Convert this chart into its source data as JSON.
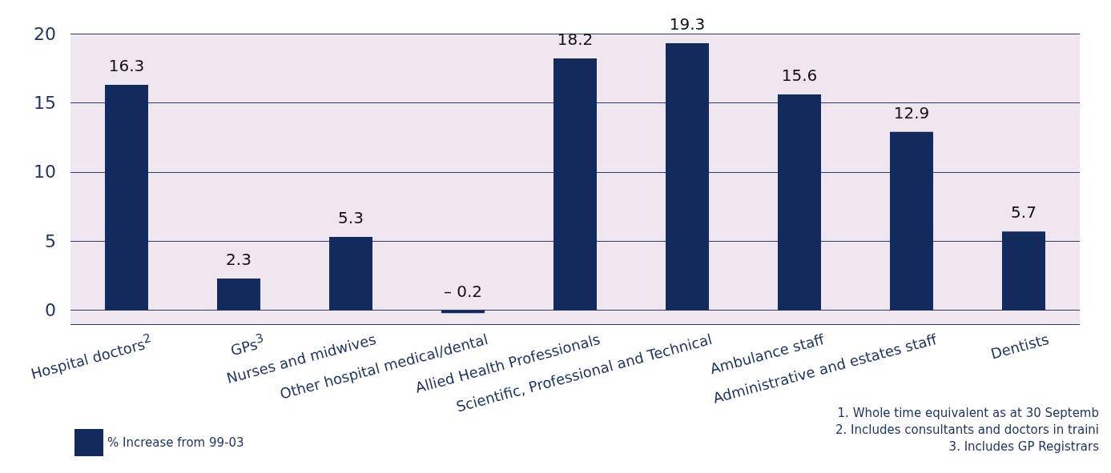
{
  "chart_data": {
    "type": "bar",
    "categories": [
      "Hospital doctors$^{2}$",
      "GPs$^{3}$",
      "Nurses and midwives",
      "Other hospital medical/dental",
      "Allied Health Professionals",
      "Scientific, Professional and Technical",
      "Ambulance staff",
      "Administrative and estates staff",
      "Dentists"
    ],
    "series": [
      {
        "name": "% Increase from 99-03",
        "color": "#132b5c",
        "values": [
          16.3,
          2.3,
          5.3,
          -0.2,
          18.2,
          19.3,
          15.6,
          12.9,
          5.7
        ],
        "value_labels": [
          "16.3",
          "2.3",
          "5.3",
          "– 0.2",
          "18.2",
          "19.3",
          "15.6",
          "12.9",
          "5.7"
        ]
      }
    ],
    "ylim": [
      -1,
      20
    ],
    "yticks": [
      0,
      5,
      10,
      15,
      20
    ],
    "grid": "y",
    "legend": "bottom left",
    "annotations": [
      "1. Whole time equivalent as at 30 Septemb",
      "2. Includes consultants and doctors in traini",
      "3. Includes GP Registrars"
    ]
  }
}
